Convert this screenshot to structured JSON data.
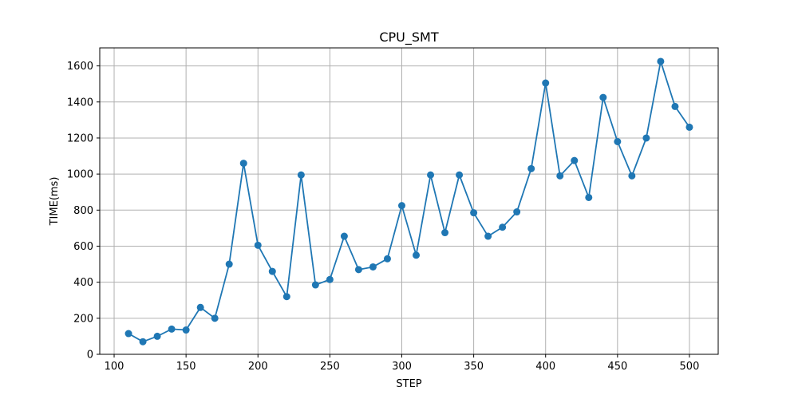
{
  "chart_data": {
    "type": "line",
    "title": "CPU_SMT",
    "xlabel": "STEP",
    "ylabel": "TIME(ms)",
    "xlim": [
      90,
      520
    ],
    "ylim": [
      0,
      1700
    ],
    "xticks": [
      100,
      150,
      200,
      250,
      300,
      350,
      400,
      450,
      500
    ],
    "yticks": [
      0,
      200,
      400,
      600,
      800,
      1000,
      1200,
      1400,
      1600
    ],
    "grid": true,
    "legend": "none",
    "series": [
      {
        "color": "#1f77b4",
        "marker": "circle",
        "x": [
          110,
          120,
          130,
          140,
          150,
          160,
          170,
          180,
          190,
          200,
          210,
          220,
          230,
          240,
          250,
          260,
          270,
          280,
          290,
          300,
          310,
          320,
          330,
          340,
          350,
          360,
          370,
          380,
          390,
          400,
          410,
          420,
          430,
          440,
          450,
          460,
          470,
          480,
          490,
          500
        ],
        "y": [
          115,
          70,
          100,
          140,
          135,
          260,
          200,
          500,
          1060,
          605,
          460,
          320,
          995,
          385,
          415,
          655,
          470,
          485,
          530,
          825,
          550,
          995,
          675,
          995,
          785,
          655,
          705,
          790,
          1030,
          1505,
          990,
          1075,
          870,
          1425,
          1180,
          990,
          1200,
          1625,
          1375,
          1260
        ]
      }
    ]
  }
}
